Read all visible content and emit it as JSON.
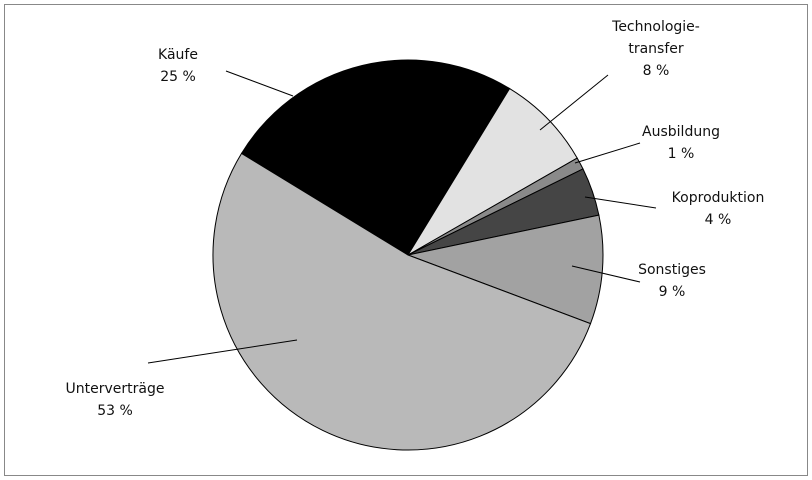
{
  "chart_data": {
    "type": "pie",
    "categories": [
      "Käufe",
      "Technologie-\ntransfer",
      "Ausbildung",
      "Koproduktion",
      "Sonstiges",
      "Unterverträge"
    ],
    "values": [
      25,
      8,
      1,
      4,
      9,
      53
    ],
    "value_labels": [
      "25 %",
      "8 %",
      "1 %",
      "4 %",
      "9 %",
      "53 %"
    ],
    "colors": [
      "#000000",
      "#e2e2e2",
      "#8a8a8a",
      "#454545",
      "#a2a2a2",
      "#b9b9b9"
    ]
  }
}
